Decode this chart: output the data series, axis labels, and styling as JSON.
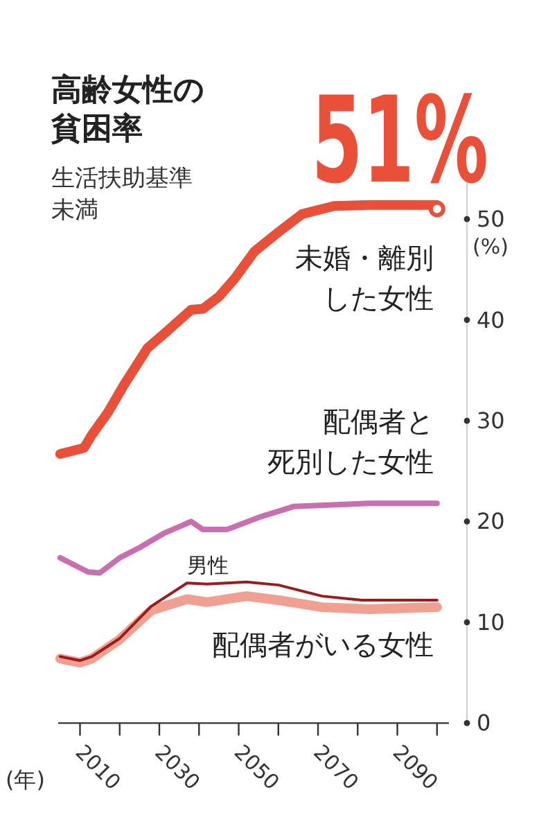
{
  "chart_data": {
    "type": "line",
    "title": "高齢女性の貧困率",
    "subtitle": "生活扶助基準未満",
    "xlabel": "(年)",
    "ylabel": "(%)",
    "xlim": [
      2004.5,
      2103
    ],
    "xticks": [
      2010,
      {
        "value": 2020,
        "label": null
      },
      2030,
      {
        "value": 2040,
        "label": null
      },
      2050,
      {
        "value": 2060,
        "label": null
      },
      2070,
      {
        "value": 2080,
        "label": null
      },
      2090,
      {
        "value": 2100,
        "label": null
      }
    ],
    "ylim": [
      0,
      55
    ],
    "yticks": [
      0,
      10,
      20,
      30,
      40,
      50
    ],
    "grid": false,
    "marker": "none",
    "line_style": "solid",
    "series": [
      {
        "name": "未婚・離別した女性",
        "color": "#e8503a",
        "x": [
          2005,
          2008,
          2011,
          2013,
          2017,
          2021,
          2027,
          2032,
          2038,
          2041,
          2045,
          2049,
          2054,
          2060,
          2066,
          2074,
          2083,
          2100
        ],
        "values": [
          26.7,
          27.0,
          27.3,
          28.6,
          30.8,
          33.5,
          37.2,
          38.9,
          41.0,
          41.1,
          42.3,
          44.1,
          46.8,
          48.7,
          50.5,
          51.3,
          51.4,
          51.4
        ]
      },
      {
        "name": "配偶者と死別した女性",
        "color": "#c86fb0",
        "x": [
          2005,
          2009,
          2012,
          2015,
          2020,
          2025,
          2031,
          2038,
          2041,
          2047,
          2055,
          2064,
          2083,
          2100
        ],
        "values": [
          16.4,
          15.6,
          15.0,
          14.9,
          16.4,
          17.4,
          18.8,
          20.0,
          19.2,
          19.2,
          20.4,
          21.5,
          21.8,
          21.8
        ]
      },
      {
        "name": "男性",
        "color": "#9b1b1e",
        "x": [
          2005,
          2010,
          2013,
          2020,
          2028,
          2037,
          2042,
          2052,
          2060,
          2071,
          2081,
          2100
        ],
        "values": [
          6.6,
          6.2,
          6.6,
          8.4,
          11.6,
          13.9,
          13.8,
          14.0,
          13.7,
          12.6,
          12.2,
          12.2
        ]
      },
      {
        "name": "配偶者がいる女性",
        "color": "#f0a090",
        "x": [
          2005,
          2010,
          2013,
          2020,
          2028,
          2037,
          2042,
          2052,
          2060,
          2071,
          2083,
          2100
        ],
        "values": [
          6.4,
          6.0,
          6.4,
          8.3,
          11.2,
          12.3,
          12.0,
          12.6,
          12.2,
          11.5,
          11.3,
          11.5
        ]
      }
    ],
    "annotations": [
      {
        "text": "51%",
        "x": 2100,
        "y": 51
      }
    ]
  }
}
